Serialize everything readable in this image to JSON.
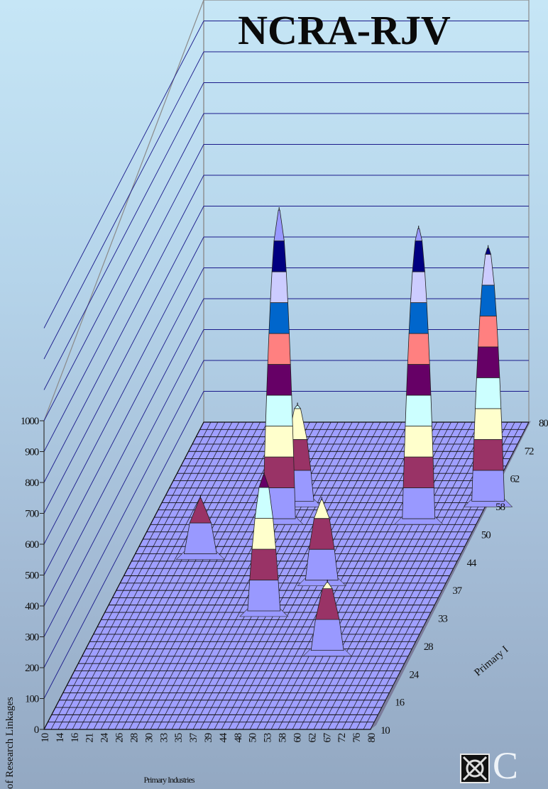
{
  "chart_data": {
    "type": "surface3d",
    "title": "NCRA-RJV",
    "zlabel": "No. of Research Linkages",
    "xlabel": "Primary Industries",
    "ylabel": "Primary I",
    "zlim": [
      0,
      1000
    ],
    "z_ticks": [
      "0",
      "100",
      "200",
      "300",
      "400",
      "500",
      "600",
      "700",
      "800",
      "900",
      "1000"
    ],
    "x_ticks": [
      "10",
      "14",
      "16",
      "21",
      "24",
      "26",
      "28",
      "30",
      "33",
      "35",
      "37",
      "39",
      "44",
      "48",
      "50",
      "53",
      "58",
      "60",
      "62",
      "67",
      "72",
      "76",
      "80"
    ],
    "y_ticks": [
      "10",
      "16",
      "24",
      "28",
      "33",
      "37",
      "44",
      "50",
      "58",
      "62",
      "72",
      "80"
    ],
    "peaks": [
      {
        "x": 37,
        "y": 58,
        "z": 1000
      },
      {
        "x": 67,
        "y": 58,
        "z": 940
      },
      {
        "x": 80,
        "y": 62,
        "z": 820
      },
      {
        "x": 44,
        "y": 37,
        "z": 440
      },
      {
        "x": 39,
        "y": 62,
        "z": 310
      },
      {
        "x": 53,
        "y": 44,
        "z": 260
      },
      {
        "x": 62,
        "y": 28,
        "z": 220
      },
      {
        "x": 24,
        "y": 50,
        "z": 180
      }
    ],
    "band_colors": [
      "#9999ff",
      "#993366",
      "#ffffcc",
      "#ccffff",
      "#660066",
      "#ff8080",
      "#0066cc",
      "#ccccff",
      "#000080"
    ]
  },
  "logo": {
    "text": "C"
  }
}
